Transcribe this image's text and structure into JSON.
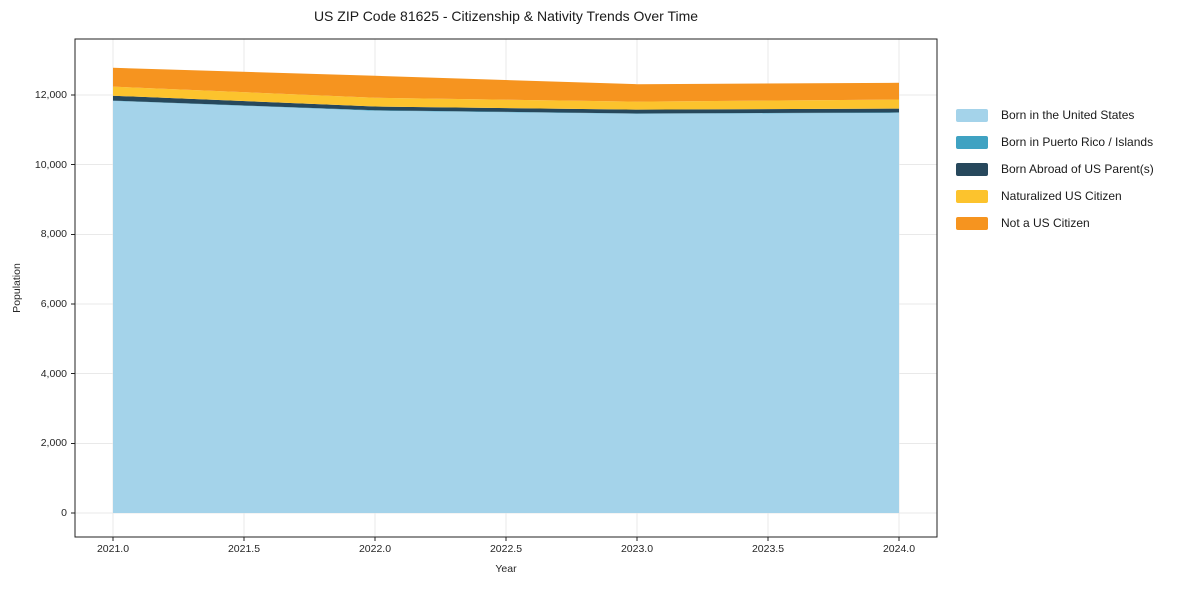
{
  "chart_data": {
    "type": "area",
    "stacked": true,
    "title": "US ZIP Code 81625 - Citizenship & Nativity Trends Over Time",
    "xlabel": "Year",
    "ylabel": "Population",
    "x": [
      2021,
      2022,
      2023,
      2024
    ],
    "series": [
      {
        "name": "Born in the United States",
        "color": "#a4d3ea",
        "values": [
          11830,
          11550,
          11460,
          11490
        ]
      },
      {
        "name": "Born in Puerto Rico / Islands",
        "color": "#3fa2c2",
        "values": [
          10,
          10,
          10,
          10
        ]
      },
      {
        "name": "Born Abroad of US Parent(s)",
        "color": "#27485c",
        "values": [
          140,
          110,
          110,
          110
        ]
      },
      {
        "name": "Naturalized US Citizen",
        "color": "#fcc32d",
        "values": [
          260,
          250,
          230,
          260
        ]
      },
      {
        "name": "Not a US Citizen",
        "color": "#f6941f",
        "values": [
          540,
          630,
          500,
          480
        ]
      }
    ],
    "x_tick_values": [
      2021.0,
      2021.5,
      2022.0,
      2022.5,
      2023.0,
      2023.5,
      2024.0
    ],
    "x_tick_labels": [
      "2021.0",
      "2021.5",
      "2022.0",
      "2022.5",
      "2023.0",
      "2023.5",
      "2024.0"
    ],
    "y_tick_values": [
      0,
      2000,
      4000,
      6000,
      8000,
      10000,
      12000
    ],
    "y_tick_labels": [
      "0",
      "2,000",
      "4,000",
      "6,000",
      "8,000",
      "10,000",
      "12,000"
    ],
    "xlim": [
      2020.85,
      2024.15
    ],
    "ylim": [
      -690,
      13600
    ],
    "grid": true,
    "legend_position": "right of plot",
    "colors": {
      "background": "#ffffff",
      "grid": "#e9e9e9",
      "spine": "#222222",
      "text": "#262626"
    }
  }
}
